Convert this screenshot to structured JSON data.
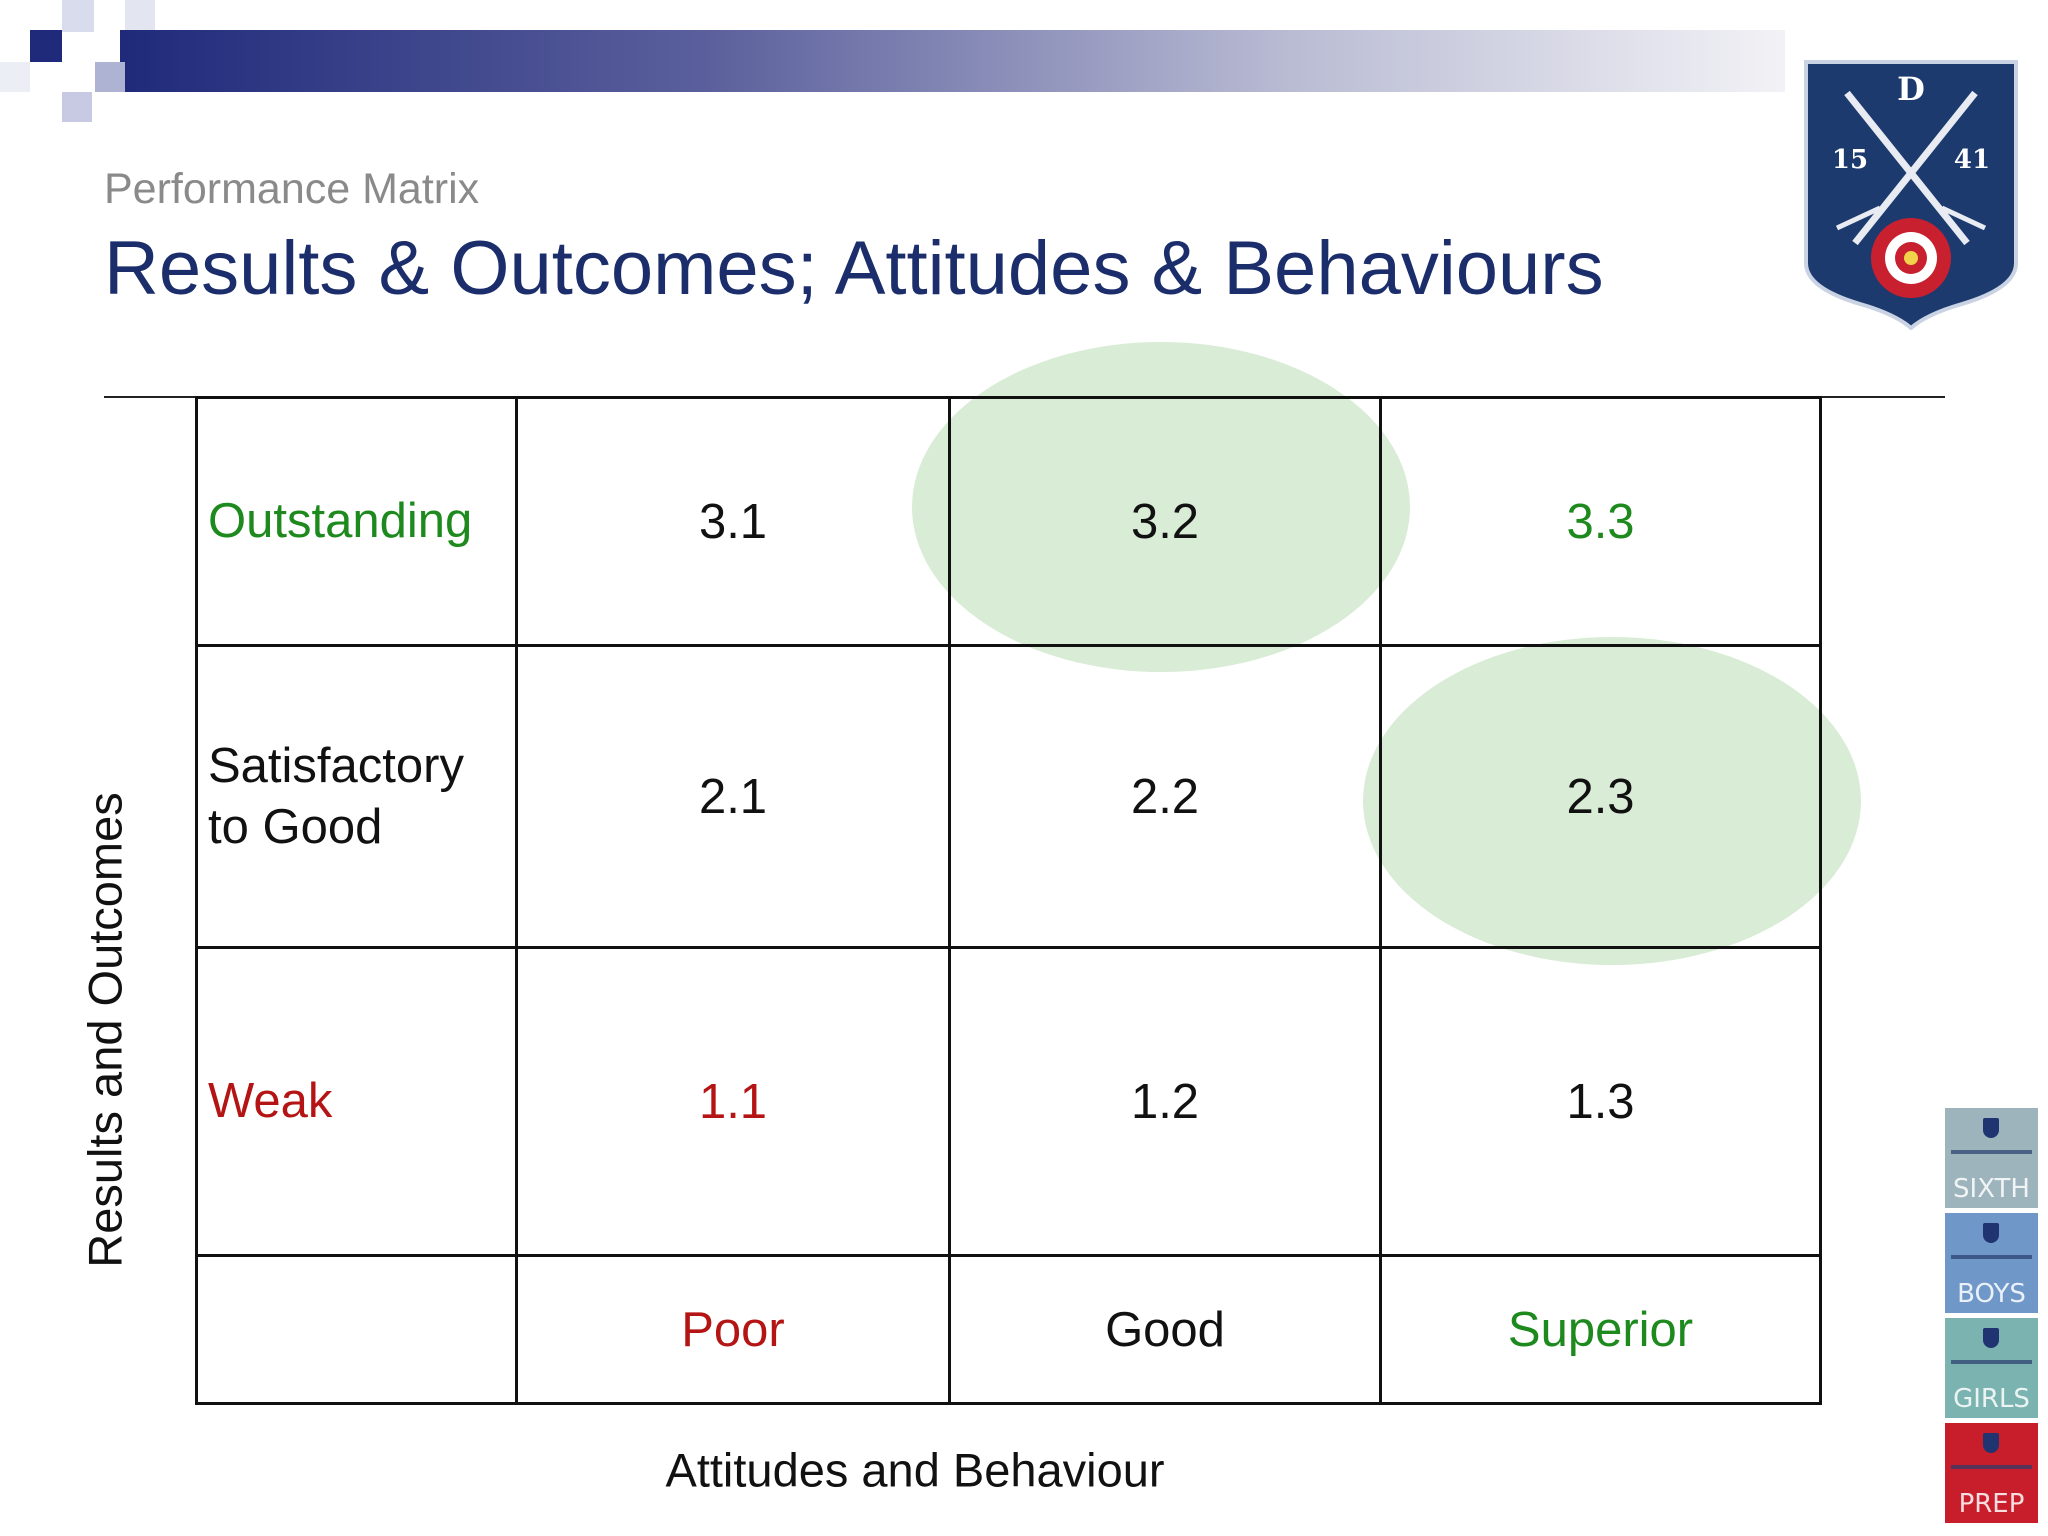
{
  "slide": {
    "subtitle": "Performance Matrix",
    "title": "Results & Outcomes; Attitudes & Behaviours"
  },
  "crest": {
    "letter": "D",
    "left_year": "15",
    "right_year": "41"
  },
  "matrix": {
    "rows": [
      {
        "label": "Outstanding",
        "label_color": "green",
        "cells": [
          "3.1",
          "3.2",
          "3.3"
        ]
      },
      {
        "label": "Satisfactory to Good",
        "label_color": "black",
        "cells": [
          "2.1",
          "2.2",
          "2.3"
        ]
      },
      {
        "label": "Weak",
        "label_color": "red",
        "cells": [
          "1.1",
          "1.2",
          "1.3"
        ]
      }
    ],
    "columns": [
      "Poor",
      "Good",
      "Superior"
    ],
    "highlighted_cells": [
      "3.2",
      "2.3"
    ]
  },
  "axes": {
    "y_label": "Results and Outcomes",
    "x_label": "Attitudes and Behaviour"
  },
  "school_tiles": [
    {
      "label": "SIXTH",
      "color": "#9db4bd"
    },
    {
      "label": "BOYS",
      "color": "#6f97c8"
    },
    {
      "label": "GIRLS",
      "color": "#7ab3b0"
    },
    {
      "label": "PREP",
      "color": "#c81e2b"
    }
  ],
  "colors": {
    "title": "#1b2e6b",
    "green": "#1e8a1e",
    "red": "#b51414",
    "highlight": "#d9ecd6",
    "crest": "#1d3a6e"
  }
}
